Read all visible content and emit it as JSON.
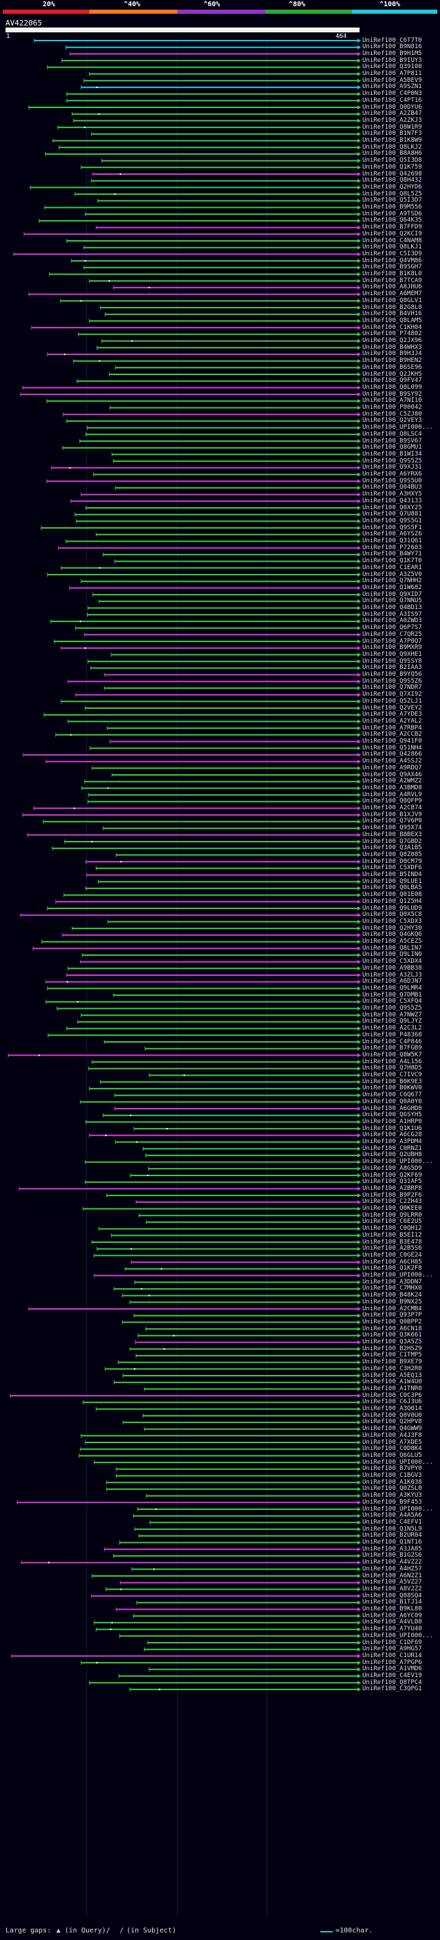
{
  "legend": {
    "labels": [
      "20%",
      "^40%",
      "^60%",
      "^80%",
      "^100%"
    ],
    "colors": [
      "#e8182c",
      "#f07a14",
      "#9a30c8",
      "#2ea82e",
      "#20c8d8"
    ]
  },
  "query": {
    "id": "AV422065",
    "start": "1",
    "end": "464"
  },
  "colors": {
    "green": "#3ccc3c",
    "magenta": "#d040d0",
    "cyan": "#20c8e0",
    "background": "#000010"
  },
  "hits": [
    "UniRef100_C6T7T0",
    "UniRef100_B9N816",
    "UniRef100_B9H1M5",
    "UniRef100_B9IUY3",
    "UniRef100_Q39108",
    "UniRef100_A7P811",
    "UniRef100_A5BEV9",
    "UniRef100_A9SZN1",
    "UniRef100_C4P0N3",
    "UniRef100_C4PT16",
    "UniRef100_Q0DYU6",
    "UniRef100_A2ZB47",
    "UniRef100_A2ZKJ3",
    "UniRef100_Q8W1R9",
    "UniRef100_B1N7F3",
    "UniRef100_B1K8W9",
    "UniRef100_Q8LKJ2",
    "UniRef100_B8A8H6",
    "UniRef100_Q5I3D8",
    "UniRef100_Q1K759",
    "UniRef100_Q42698",
    "UniRef100_Q8H432",
    "UniRef100_Q2HYD6",
    "UniRef100_Q8L5Z5",
    "UniRef100_Q5I3D7",
    "UniRef100_B9M556",
    "UniRef100_A9TSD6",
    "UniRef100_Q64K35",
    "UniRef100_B7FFD9",
    "UniRef100_Q2KCI9",
    "UniRef100_C4NAM8",
    "UniRef100_Q8LKJ1",
    "UniRef100_C5I3D9",
    "UniRef100_Q4VM86",
    "UniRef100_B9SGH7",
    "UniRef100_B1K8L0",
    "UniRef100_B7TCA9",
    "UniRef100_A8JHU6",
    "UniRef100_A6MEM7",
    "UniRef100_Q8GLV1",
    "UniRef100_B2G8L0",
    "UniRef100_B4VH16",
    "UniRef100_Q8LAM5",
    "UniRef100_C1KH04",
    "UniRef100_P74802",
    "UniRef100_Q2JX96",
    "UniRef100_B4WHX3",
    "UniRef100_B9H3J4",
    "UniRef100_B9HEN2",
    "UniRef100_B6SE96",
    "UniRef100_Q2JKH5",
    "UniRef100_Q9FV47",
    "UniRef100_Q8L099",
    "UniRef100_B9SY92",
    "UniRef100_A7NI10",
    "UniRef100_P80042",
    "UniRef100_C5ZJ80",
    "UniRef100_Q2VEY3",
    "UniRef100_UPI000...",
    "UniRef100_Q8LSC4",
    "UniRef100_B9SV67",
    "UniRef100_Q8GMU1",
    "UniRef100_B1WI34",
    "UniRef100_Q9S5Z5",
    "UniRef100_Q9XJ31",
    "UniRef100_A6YRX6",
    "UniRef100_Q9S5U0",
    "UniRef100_Q04BU3",
    "UniRef100_A3HXY5",
    "UniRef100_Q43133",
    "UniRef100_Q0XY25",
    "UniRef100_Q7U881",
    "UniRef100_Q9S5G1",
    "UniRef100_Q9S5F1",
    "UniRef100_A6YSZ6",
    "UniRef100_Q31Q61",
    "UniRef100_P72683",
    "UniRef100_B4WY71",
    "UniRef100_Q1K7T0",
    "UniRef100_C1EAR1",
    "UniRef100_A3Z5V0",
    "UniRef100_Q7NHH2",
    "UniRef100_Q1W682",
    "UniRef100_Q9XID7",
    "UniRef100_Q7NNU5",
    "UniRef100_Q4BD13",
    "UniRef100_A3IS97",
    "UniRef100_A0ZWD3",
    "UniRef100_Q6P7S7",
    "UniRef100_C7QR25",
    "UniRef100_A7P0Q7",
    "UniRef100_B9MXR9",
    "UniRef100_Q9XHE1",
    "UniRef100_Q9SSY8",
    "UniRef100_B2IAA3",
    "UniRef100_B9YQ56",
    "UniRef100_Q9S5Z6",
    "UniRef100_Q7NDR7",
    "UniRef100_Q7XI92",
    "UniRef100_Q5ZLJ1",
    "UniRef100_Q2VEY2",
    "UniRef100_A7YDE3",
    "UniRef100_A2YAL2",
    "UniRef100_A7RBP4",
    "UniRef100_A2CCB2",
    "UniRef100_Q941F0",
    "UniRef100_Q51NH4",
    "UniRef100_Q42866",
    "UniRef100_A4SSJ2",
    "UniRef100_A9RDQ7",
    "UniRef100_Q9AX46",
    "UniRef100_A2WMZ2",
    "UniRef100_A3BMD8",
    "UniRef100_A4RVL9",
    "UniRef100_Q0QFP9",
    "UniRef100_A2CB74",
    "UniRef100_B1XJV9",
    "UniRef100_Q7V6P0",
    "UniRef100_Q95X74",
    "UniRef100_B8BEX3",
    "UniRef100_Q7GBD2",
    "UniRef100_Q3A1B5",
    "UniRef100_Q8Z085",
    "UniRef100_D0CM79",
    "UniRef100_C5XDF6",
    "UniRef100_B5IND4",
    "UniRef100_Q9LUE1",
    "UniRef100_Q0LBA5",
    "UniRef100_Q01E08",
    "UniRef100_Q1Z5H4",
    "UniRef100_Q9LUD9",
    "UniRef100_Q0X5C8",
    "UniRef100_C5XDX3",
    "UniRef100_Q2HY30",
    "UniRef100_Q4GKQ6",
    "UniRef100_A5CEZ5",
    "UniRef100_Q8LIN7",
    "UniRef100_Q9LIN0",
    "UniRef100_C5XDX4",
    "UniRef100_A9BB38",
    "UniRef100_A3ZLJ3",
    "UniRef100_A6DJN7",
    "UniRef100_Q9LMR4",
    "UniRef100_Q7DMB1",
    "UniRef100_C5XFQ4",
    "UniRef100_Q9S5Z5",
    "UniRef100_A7NWZ7",
    "UniRef100_Q9LJYZ",
    "UniRef100_A2C3L2",
    "UniRef100_P48368",
    "UniRef100_C4P846",
    "UniRef100_B7FGB9",
    "UniRef100_Q8W5K7",
    "UniRef100_A4L156",
    "UniRef100_Q7H8D5",
    "UniRef100_C7IVC9",
    "UniRef100_B0K9E3",
    "UniRef100_B0KWV0",
    "UniRef100_C6Q677",
    "UniRef100_Q0A0Y0",
    "UniRef100_A6GHD8",
    "UniRef100_Q6SYH5",
    "UniRef100_A1HRP0",
    "UniRef100_Q1K1U6",
    "UniRef100_A6CG28",
    "UniRef100_A3PDM4",
    "UniRef100_C0RNZ1",
    "UniRef100_Q2UBH8",
    "UniRef100_UPI000...",
    "UniRef100_A8G5D9",
    "UniRef100_Q2KF69",
    "UniRef100_Q31AF5",
    "UniRef100_A2BRP8",
    "UniRef100_B9P2F6",
    "UniRef100_C2ZH43",
    "UniRef100_Q0KEE0",
    "UniRef100_Q9LRR0",
    "UniRef100_C6E2U5",
    "UniRef100_C0QH12",
    "UniRef100_B5EI12",
    "UniRef100_B3E478",
    "UniRef100_A2B5S6",
    "UniRef100_C0GE24",
    "UniRef100_A6CH85",
    "UniRef100_Q1K2F8",
    "UniRef100_UPI000...",
    "UniRef100_A3DDN7",
    "UniRef100_C7MHX0",
    "UniRef100_B48K24",
    "UniRef100_B9NX25",
    "UniRef100_A2CMB4",
    "UniRef100_Q93P7P",
    "UniRef100_Q0BPP2",
    "UniRef100_A6CN18",
    "UniRef100_Q3K661",
    "UniRef100_Q3A5Z5",
    "UniRef100_B2HSZ9",
    "UniRef100_C1TMP5",
    "UniRef100_B9XE79",
    "UniRef100_C3H2R0",
    "UniRef100_A5EQ13",
    "UniRef100_A1W4U0",
    "UniRef100_A1TNR0",
    "UniRef100_C0C3P6",
    "UniRef100_C6J3U6",
    "UniRef100_A3Q014",
    "UniRef100_Q0V0U0",
    "UniRef100_Q2HPV8",
    "UniRef100_Q4GWW9",
    "UniRef100_A4J3F8",
    "UniRef100_A7XDE5",
    "UniRef100_C0D8K4",
    "UniRef100_Q6GLU5",
    "UniRef100_UPI000...",
    "UniRef100_B7VPY0",
    "UniRef100_C1BGV3",
    "UniRef100_A1K038",
    "UniRef100_Q0ZSL0",
    "UniRef100_A3KYU3",
    "UniRef100_B9F453",
    "UniRef100_UPI000...",
    "UniRef100_A4A5A6",
    "UniRef100_C4EFV1",
    "UniRef100_Q1N5L9",
    "UniRef100_B2UR04",
    "UniRef100_Q1NT16",
    "UniRef100_A3JA85",
    "UniRef100_B1G2S6",
    "UniRef100_A4VZ22",
    "UniRef100_A4HZ57",
    "UniRef100_A6N2Z1",
    "UniRef100_A5VZ27",
    "UniRef100_A8V2Z2",
    "UniRef100_Q88SQ4",
    "UniRef100_B1TJ14",
    "UniRef100_B9KL80",
    "UniRef100_A6YC09",
    "UniRef100_A4VLB8",
    "UniRef100_A7YU40",
    "UniRef100_UPI000...",
    "UniRef100_C1DF69",
    "UniRef100_A9HG57",
    "UniRef100_C1UR14",
    "UniRef100_A7PGP6",
    "UniRef100_A1VMD6",
    "UniRef100_C4EV19",
    "UniRef100_Q8TPC4",
    "UniRef100_C3QPG1"
  ],
  "footer": {
    "large_gaps": "Large gaps:",
    "in_query": "(in Query)/",
    "in_subject": "(in Subject)",
    "scale": "=100char."
  }
}
